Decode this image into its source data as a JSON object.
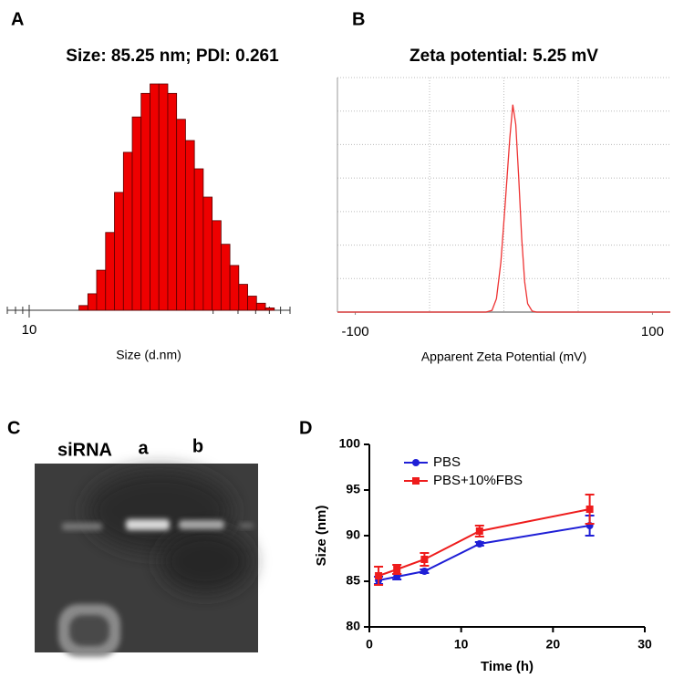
{
  "panel_labels": [
    "A",
    "B",
    "C",
    "D"
  ],
  "gel": {
    "lane_labels": [
      "siRNA",
      "a",
      "b"
    ]
  },
  "chart_data": [
    {
      "type": "histogram",
      "title": "Size: 85.25 nm;  PDI: 0.261",
      "x_label": "Size (d.nm)",
      "xscale": "log",
      "xlim": [
        7,
        700
      ],
      "xticks": [
        10
      ],
      "xminor_ticks": [
        7,
        8,
        9,
        200,
        300,
        400,
        500,
        600,
        700
      ],
      "bins": [
        22.5,
        26.0,
        30.0,
        34.7,
        40.1,
        46.4,
        53.6,
        61.9,
        71.6,
        82.7,
        95.6,
        110.4,
        127.6,
        147.5,
        170.4,
        196.9,
        227.6,
        263.0,
        303.9,
        351.2,
        405.8,
        469.0,
        541.9
      ],
      "values": [
        0.2,
        0.7,
        1.7,
        3.3,
        5.0,
        6.7,
        8.2,
        9.2,
        9.6,
        9.6,
        9.2,
        8.1,
        7.2,
        6.0,
        4.8,
        3.8,
        2.8,
        1.9,
        1.1,
        0.6,
        0.3,
        0.1
      ],
      "color": "#ee0000"
    },
    {
      "type": "line",
      "title": "Zeta potential: 5.25 mV",
      "x_label": "Apparent Zeta Potential (mV)",
      "xlim": [
        -112,
        112
      ],
      "ylim": [
        0,
        700
      ],
      "xticks": [
        -100,
        100
      ],
      "x_gridlines": [
        -50,
        0,
        50
      ],
      "y_gridlines": [
        100,
        200,
        300,
        400,
        500,
        600,
        700
      ],
      "x": [
        -112,
        -12,
        -8,
        -5,
        -2,
        1,
        4,
        6,
        8,
        10,
        12,
        14,
        16,
        19,
        22,
        112
      ],
      "values": [
        0,
        0,
        5,
        40,
        150,
        330,
        520,
        619,
        560,
        400,
        220,
        90,
        25,
        3,
        0,
        0
      ],
      "color": "#ee3333"
    },
    {
      "type": "line",
      "x_label": "Time (h)",
      "y_label": "Size (nm)",
      "legend": "upper left",
      "xlim": [
        0,
        30
      ],
      "ylim": [
        80,
        100
      ],
      "xticks": [
        0,
        10,
        20,
        30
      ],
      "yticks": [
        80,
        85,
        90,
        95,
        100
      ],
      "x": [
        1,
        3,
        6,
        12,
        24
      ],
      "series": [
        {
          "name": "PBS",
          "color": "#1f1fd6",
          "marker": "circle",
          "values": [
            85.1,
            85.5,
            86.1,
            89.1,
            91.1
          ],
          "errors": [
            0.4,
            0.3,
            0.2,
            0.2,
            1.1
          ]
        },
        {
          "name": "PBS+10%FBS",
          "color": "#ee1c1c",
          "marker": "square",
          "values": [
            85.6,
            86.3,
            87.4,
            90.5,
            92.9
          ],
          "errors": [
            1.0,
            0.5,
            0.7,
            0.6,
            1.6
          ]
        }
      ]
    }
  ]
}
